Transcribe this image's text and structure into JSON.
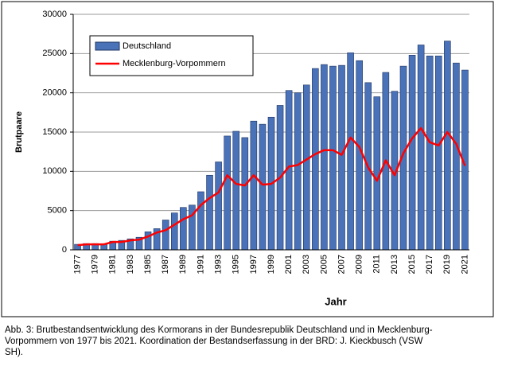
{
  "chart_data": {
    "type": "bar-line",
    "x_label": "Jahr",
    "y_label": "Brutpaare",
    "categories": [
      "1977",
      null,
      "1979",
      null,
      "1981",
      null,
      "1983",
      null,
      "1985",
      null,
      "1987",
      null,
      "1989",
      null,
      "1991",
      null,
      "1993",
      null,
      "1995",
      null,
      "1997",
      null,
      "1999",
      null,
      "2001",
      null,
      "2003",
      null,
      "2005",
      null,
      "2007",
      null,
      "2009",
      null,
      "2011",
      null,
      "2013",
      null,
      "2015",
      null,
      "2017",
      null,
      "2019",
      null,
      "2021"
    ],
    "series": [
      {
        "name": "Deutschland",
        "type": "bar",
        "color": "#4a72b8",
        "values": [
          700,
          800,
          800,
          700,
          1100,
          1200,
          1400,
          1600,
          2300,
          2700,
          3800,
          4700,
          5400,
          5700,
          7400,
          9500,
          11200,
          14500,
          15100,
          14300,
          16400,
          16000,
          16900,
          18400,
          20300,
          20000,
          21000,
          23100,
          23600,
          23400,
          23500,
          25100,
          24100,
          21300,
          19500,
          22600,
          20200,
          23400,
          24800,
          26100,
          24700,
          24700,
          26600,
          23800,
          22900
        ]
      },
      {
        "name": "Mecklenburg-Vorpommern",
        "type": "line",
        "color": "#ff0000",
        "values": [
          600,
          700,
          700,
          700,
          1000,
          1000,
          1200,
          1300,
          1700,
          2200,
          2500,
          3200,
          3900,
          4400,
          5700,
          6600,
          7300,
          9500,
          8400,
          8200,
          9500,
          8300,
          8400,
          9200,
          10600,
          10800,
          11500,
          12200,
          12700,
          12700,
          12100,
          14300,
          13100,
          10500,
          8800,
          11400,
          9500,
          12300,
          14200,
          15500,
          13700,
          13300,
          15000,
          13500,
          10700
        ]
      }
    ],
    "ylim": [
      0,
      30000
    ],
    "yticks": [
      0,
      5000,
      10000,
      15000,
      20000,
      25000,
      30000
    ],
    "grid": true
  },
  "caption": [
    "Abb. 3: Brutbestandsentwicklung des Kormorans in der Bundesrepublik Deutschland und in Mecklenburg-",
    "Vorpommern von 1977 bis 2021. Koordination der Bestandserfassung in der BRD: J. Kieckbusch (VSW",
    "SH)."
  ]
}
